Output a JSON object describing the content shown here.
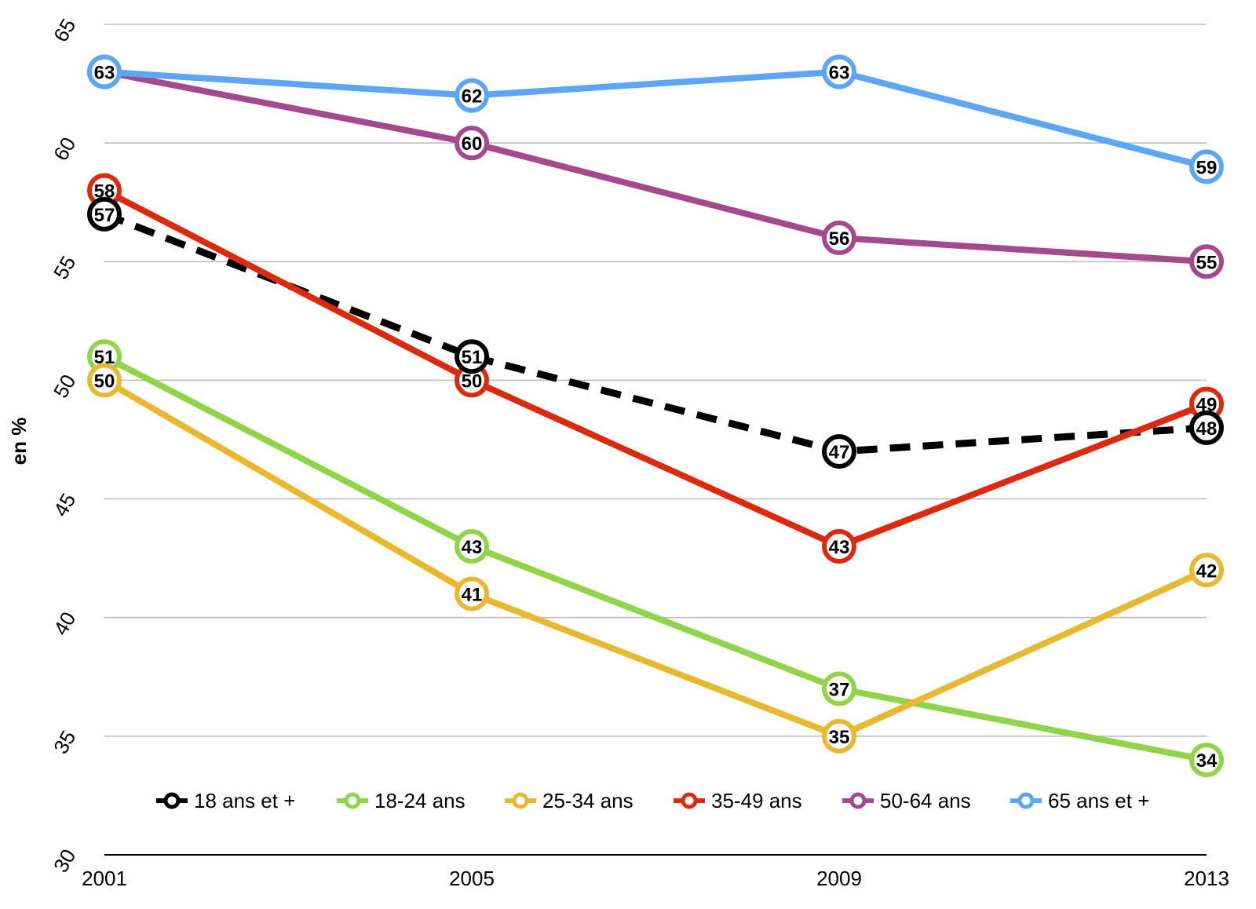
{
  "chart_data": {
    "type": "line",
    "title": "",
    "xlabel": "",
    "ylabel": "en %",
    "ylim": [
      30,
      65
    ],
    "yticks": [
      "30",
      "35",
      "40",
      "45",
      "50",
      "55",
      "60",
      "65"
    ],
    "x": [
      "2001",
      "2005",
      "2009",
      "2013"
    ],
    "grid": true,
    "legend_position": "bottom",
    "series": [
      {
        "name": "18 ans et +",
        "values": [
          57,
          51,
          47,
          48
        ],
        "color": "#000000",
        "dashed": true
      },
      {
        "name": "18-24 ans",
        "values": [
          51,
          43,
          37,
          34
        ],
        "color": "#8fd44a",
        "dashed": false
      },
      {
        "name": "25-34 ans",
        "values": [
          50,
          41,
          35,
          42
        ],
        "color": "#e8b830",
        "dashed": false
      },
      {
        "name": "35-49 ans",
        "values": [
          58,
          50,
          43,
          49
        ],
        "color": "#dc2a10",
        "dashed": false
      },
      {
        "name": "50-64 ans",
        "values": [
          63,
          60,
          56,
          55
        ],
        "color": "#a44a8c",
        "dashed": false
      },
      {
        "name": "65 ans et +",
        "values": [
          63,
          62,
          63,
          59
        ],
        "color": "#5da6f7",
        "dashed": false
      }
    ]
  }
}
